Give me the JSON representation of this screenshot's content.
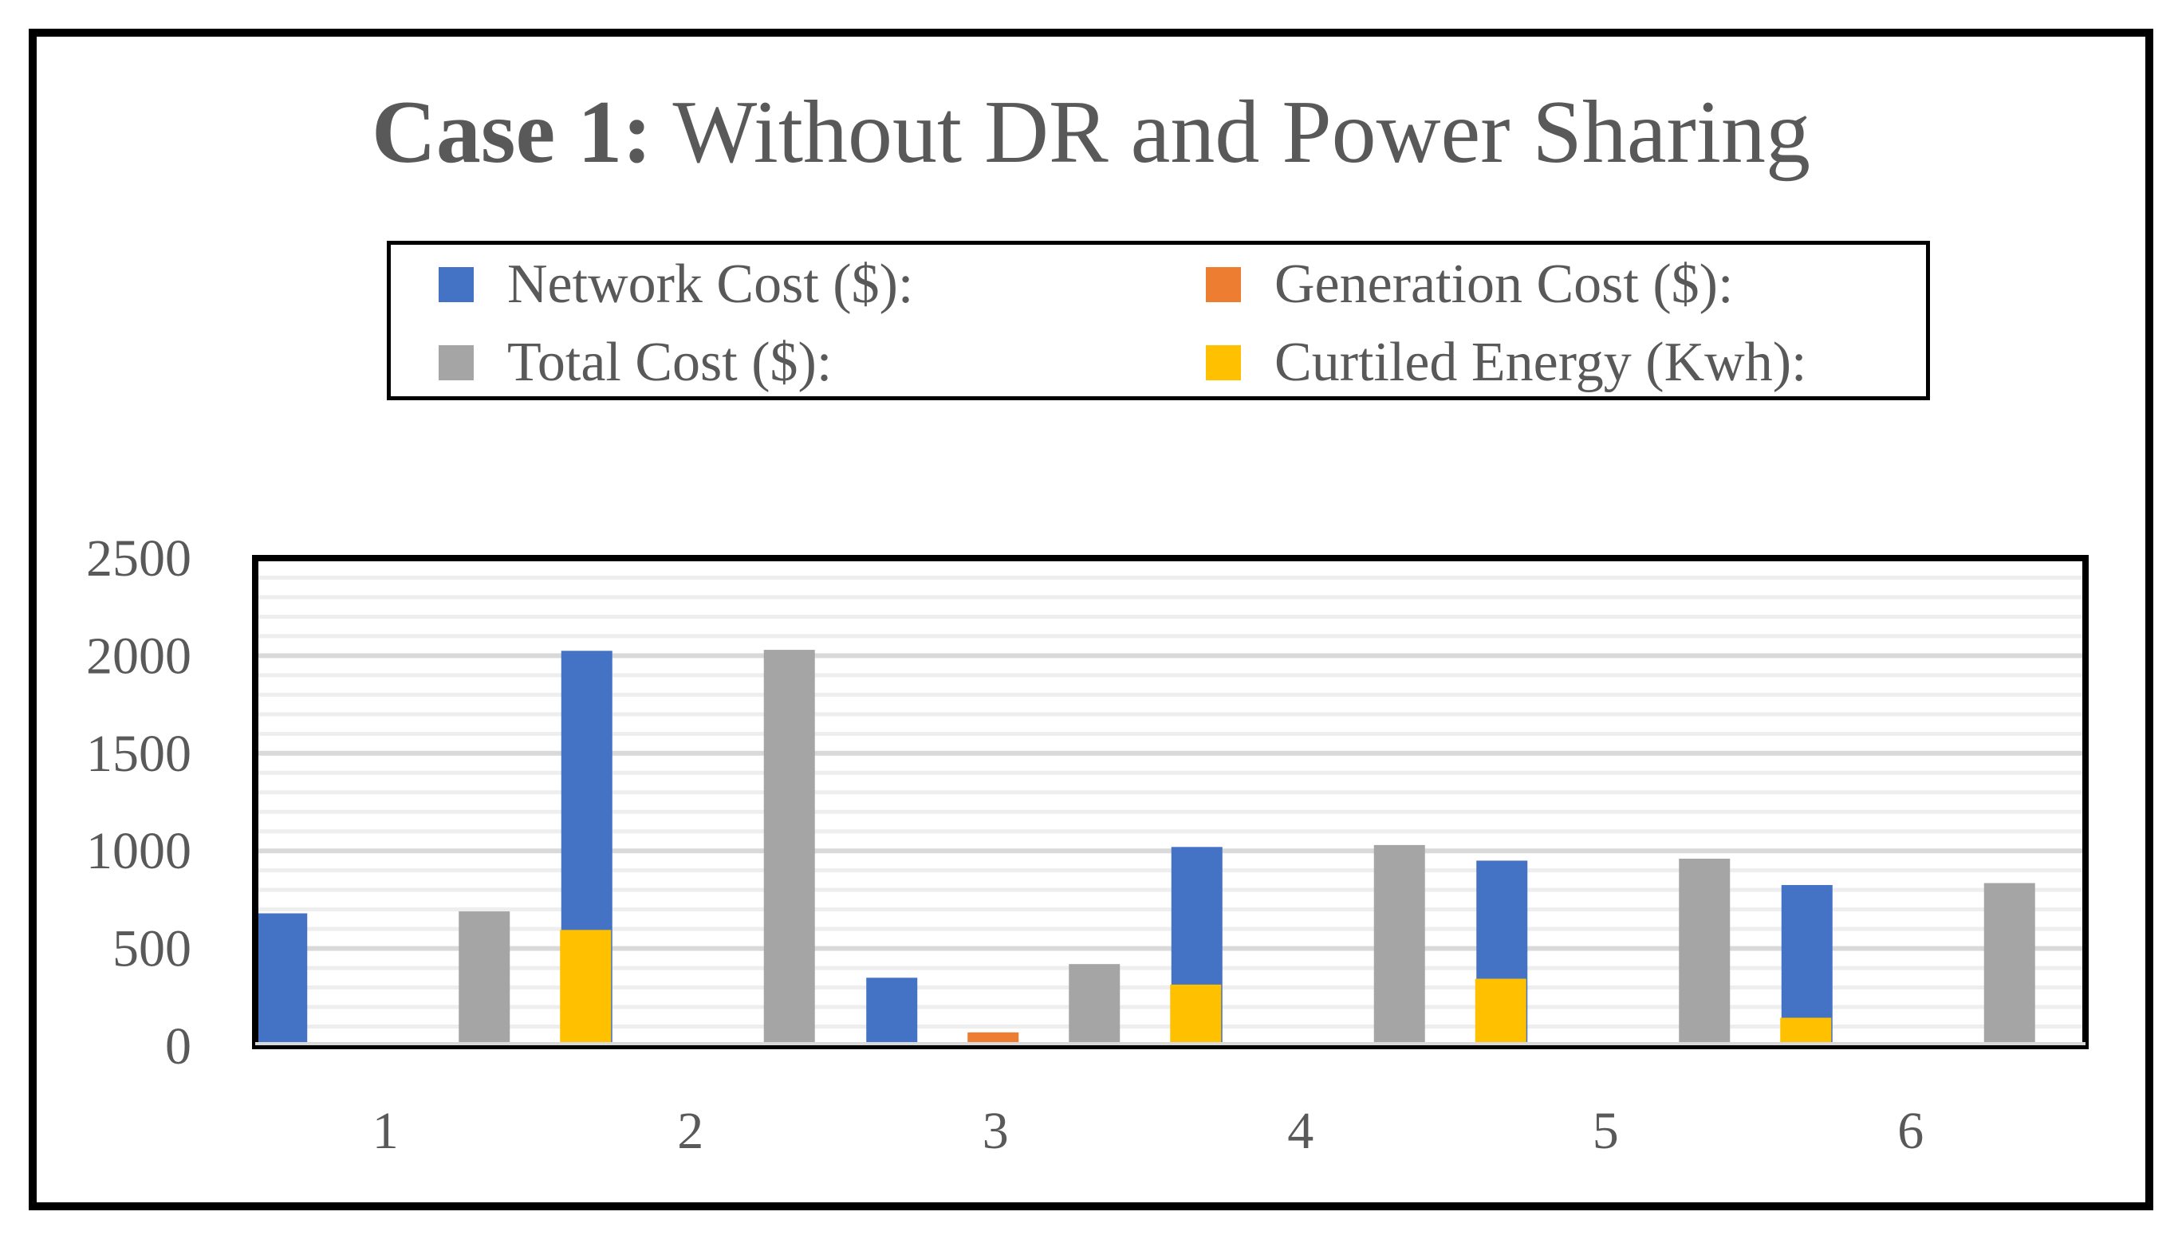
{
  "chart_data": {
    "type": "bar",
    "title_bold": "Case 1:",
    "title_rest": " Without DR and Power Sharing",
    "xlabel": "",
    "ylabel": "",
    "categories": [
      "1",
      "2",
      "3",
      "4",
      "5",
      "6"
    ],
    "ylim": [
      0,
      2500
    ],
    "yticks": [
      "0",
      "500",
      "1000",
      "1500",
      "2000",
      "2500"
    ],
    "grid": true,
    "legend_position": "top",
    "series": [
      {
        "name": "Network Cost ($):",
        "color": "#4472C4",
        "values": [
          680,
          2025,
          350,
          1020,
          950,
          825
        ]
      },
      {
        "name": "Generation Cost ($):",
        "color": "#ED7D31",
        "values": [
          10,
          0,
          70,
          0,
          0,
          0
        ]
      },
      {
        "name": "Total Cost ($):",
        "color": "#A5A5A5",
        "values": [
          690,
          2030,
          420,
          1030,
          960,
          835
        ]
      },
      {
        "name": "Curtiled Energy (Kwh):",
        "color": "#FFC000",
        "values": [
          595,
          0,
          315,
          345,
          145,
          0
        ]
      }
    ]
  }
}
